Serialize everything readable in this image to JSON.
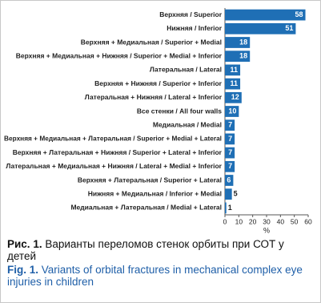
{
  "chart_data": {
    "type": "bar",
    "orientation": "horizontal",
    "categories": [
      "Верхняя / Superior",
      "Нижняя / Inferior",
      "Верхняя + Медиальная / Superior + Medial",
      "Верхняя + Медиальная + Нижняя / Superior + Medial + Inferior",
      "Латеральная / Lateral",
      "Верхняя + Нижняя / Superior + Inferior",
      "Латеральная + Нижняя / Lateral + Inferior",
      "Все стенки / All four walls",
      "Медиальная / Medial",
      "Верхняя + Медиальная + Латеральная / Superior + Medial + Lateral",
      "Верхняя + Латеральная + Нижняя / Superior + Lateral + Inferior",
      "Латеральная + Медиальная + Нижняя / Lateral + Medial + Inferior",
      "Верхняя + Латеральная / Superior + Lateral",
      "Нижняя + Медиальная / Inferior + Medial",
      "Медиальная + Латеральная / Medial + Lateral"
    ],
    "values": [
      58,
      51,
      18,
      18,
      11,
      11,
      12,
      10,
      7,
      7,
      7,
      7,
      6,
      5,
      1
    ],
    "color": "#1f6fb5",
    "xlim": [
      0,
      60
    ],
    "xticks": [
      0,
      10,
      20,
      30,
      40,
      50,
      60
    ],
    "xlabel": "%"
  },
  "caption": {
    "ru_label": "Рис. 1.",
    "ru_text": "Варианты переломов стенок орбиты при СОТ у детей",
    "en_label": "Fig. 1.",
    "en_text": "Variants of orbital fractures in mechanical complex eye injuries in children"
  }
}
